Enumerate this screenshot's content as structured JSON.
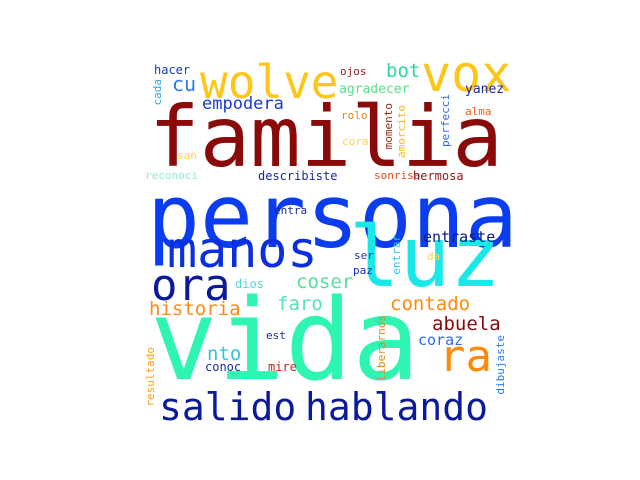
{
  "cloud": {
    "words": [
      {
        "text": "vida",
        "color": "#2EF5B2"
      },
      {
        "text": "persona",
        "color": "#0A3CF0"
      },
      {
        "text": "familia",
        "color": "#8A0A0A"
      },
      {
        "text": "luz",
        "color": "#19E8E8"
      },
      {
        "text": "manos",
        "color": "#0A2EE0"
      },
      {
        "text": "vox",
        "color": "#FFC61A"
      },
      {
        "text": "wolve",
        "color": "#FFC61A"
      },
      {
        "text": "ora",
        "color": "#0A1A9A"
      },
      {
        "text": "ra",
        "color": "#FF8A0A"
      },
      {
        "text": "salido",
        "color": "#0A1A9A"
      },
      {
        "text": "hablando",
        "color": "#0A1A9A"
      },
      {
        "text": "bot",
        "color": "#2ED6A0"
      },
      {
        "text": "cu",
        "color": "#2E7AF0"
      },
      {
        "text": "empodera",
        "color": "#1A3AD6"
      },
      {
        "text": "hacer",
        "color": "#1A3AB0"
      },
      {
        "text": "ojos",
        "color": "#9A1A1A"
      },
      {
        "text": "agradecer",
        "color": "#55E08A"
      },
      {
        "text": "yanez",
        "color": "#1A2A9A"
      },
      {
        "text": "cada",
        "color": "#2EA0F0"
      },
      {
        "text": "rolo",
        "color": "#E08A1A"
      },
      {
        "text": "cora",
        "color": "#FFD24A"
      },
      {
        "text": "alma",
        "color": "#F05A1A"
      },
      {
        "text": "amorcito",
        "color": "#FFB21A"
      },
      {
        "text": "momento",
        "color": "#9A2A1A"
      },
      {
        "text": "perfecci",
        "color": "#2E6AF0"
      },
      {
        "text": "san",
        "color": "#FFD24A"
      },
      {
        "text": "reconoci",
        "color": "#8AF0C6"
      },
      {
        "text": "describiste",
        "color": "#1A2A9A"
      },
      {
        "text": "sonrisa",
        "color": "#E04A1A"
      },
      {
        "text": "hermosa",
        "color": "#8A1A1A"
      },
      {
        "text": "entra",
        "color": "#1A2A9A"
      },
      {
        "text": "entraste",
        "color": "#0A1A7A"
      },
      {
        "text": "coser",
        "color": "#55E0A0"
      },
      {
        "text": "dios",
        "color": "#55D6E0"
      },
      {
        "text": "ser",
        "color": "#1A3AB0"
      },
      {
        "text": "paz",
        "color": "#1A2AB0"
      },
      {
        "text": "entrar",
        "color": "#2EC6E0"
      },
      {
        "text": "da",
        "color": "#FFD24A"
      },
      {
        "text": "historia",
        "color": "#FF8A1A"
      },
      {
        "text": "faro",
        "color": "#55E0C0"
      },
      {
        "text": "contado",
        "color": "#FF8A0A"
      },
      {
        "text": "abuela",
        "color": "#8A0A0A"
      },
      {
        "text": "nto",
        "color": "#2EC6E0"
      },
      {
        "text": "est",
        "color": "#1A2A9A"
      },
      {
        "text": "coraz",
        "color": "#2E6AF0"
      },
      {
        "text": "resultado",
        "color": "#FFA01A"
      },
      {
        "text": "conoc",
        "color": "#1A2A9A"
      },
      {
        "text": "mire",
        "color": "#C02A1A"
      },
      {
        "text": "liberarnos",
        "color": "#E08A1A"
      },
      {
        "text": "dibujaste",
        "color": "#2E7AF0"
      }
    ]
  }
}
